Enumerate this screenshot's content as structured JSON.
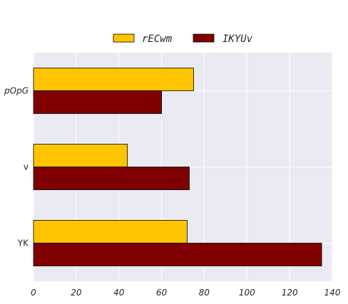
{
  "chart_data": {
    "type": "bar",
    "orientation": "horizontal",
    "categories": [
      "pOpG",
      "v",
      "YK"
    ],
    "series": [
      {
        "name": "rECwm",
        "values": [
          75,
          44,
          72
        ],
        "color": "#FFC400"
      },
      {
        "name": "IKYUv",
        "values": [
          60,
          73,
          135
        ],
        "color": "#800000"
      }
    ],
    "x_ticks": [
      "0",
      "20",
      "40",
      "60",
      "80",
      "100",
      "120",
      "140"
    ],
    "xlim": [
      0,
      140
    ],
    "grid": true,
    "legend": "top-center",
    "background": "#EAEAF2"
  }
}
